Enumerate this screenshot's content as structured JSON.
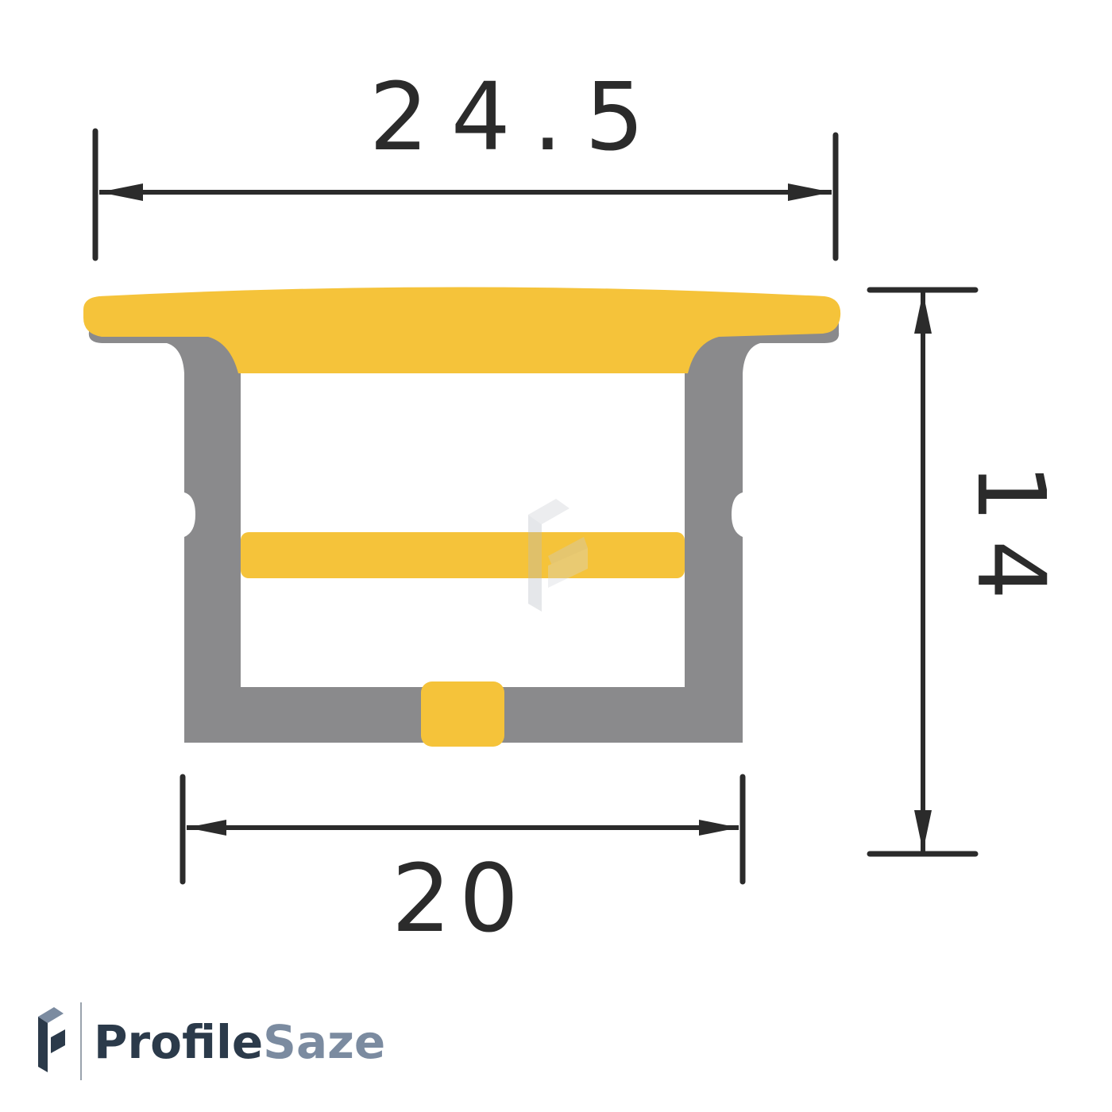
{
  "dimensions": {
    "top_width": "24.5",
    "bottom_width": "20",
    "height": "14"
  },
  "brand": {
    "logo_text_part1": "Profile",
    "logo_text_part2": "Saze",
    "icon": "profilesaze-logo-icon"
  },
  "colors": {
    "profile_gray": "#8a8a8c",
    "diffuser_yellow": "#f5c33a",
    "line_color": "#2b2b2b",
    "brand_dark": "#2b3a4a",
    "brand_light": "#7b8ba0"
  }
}
